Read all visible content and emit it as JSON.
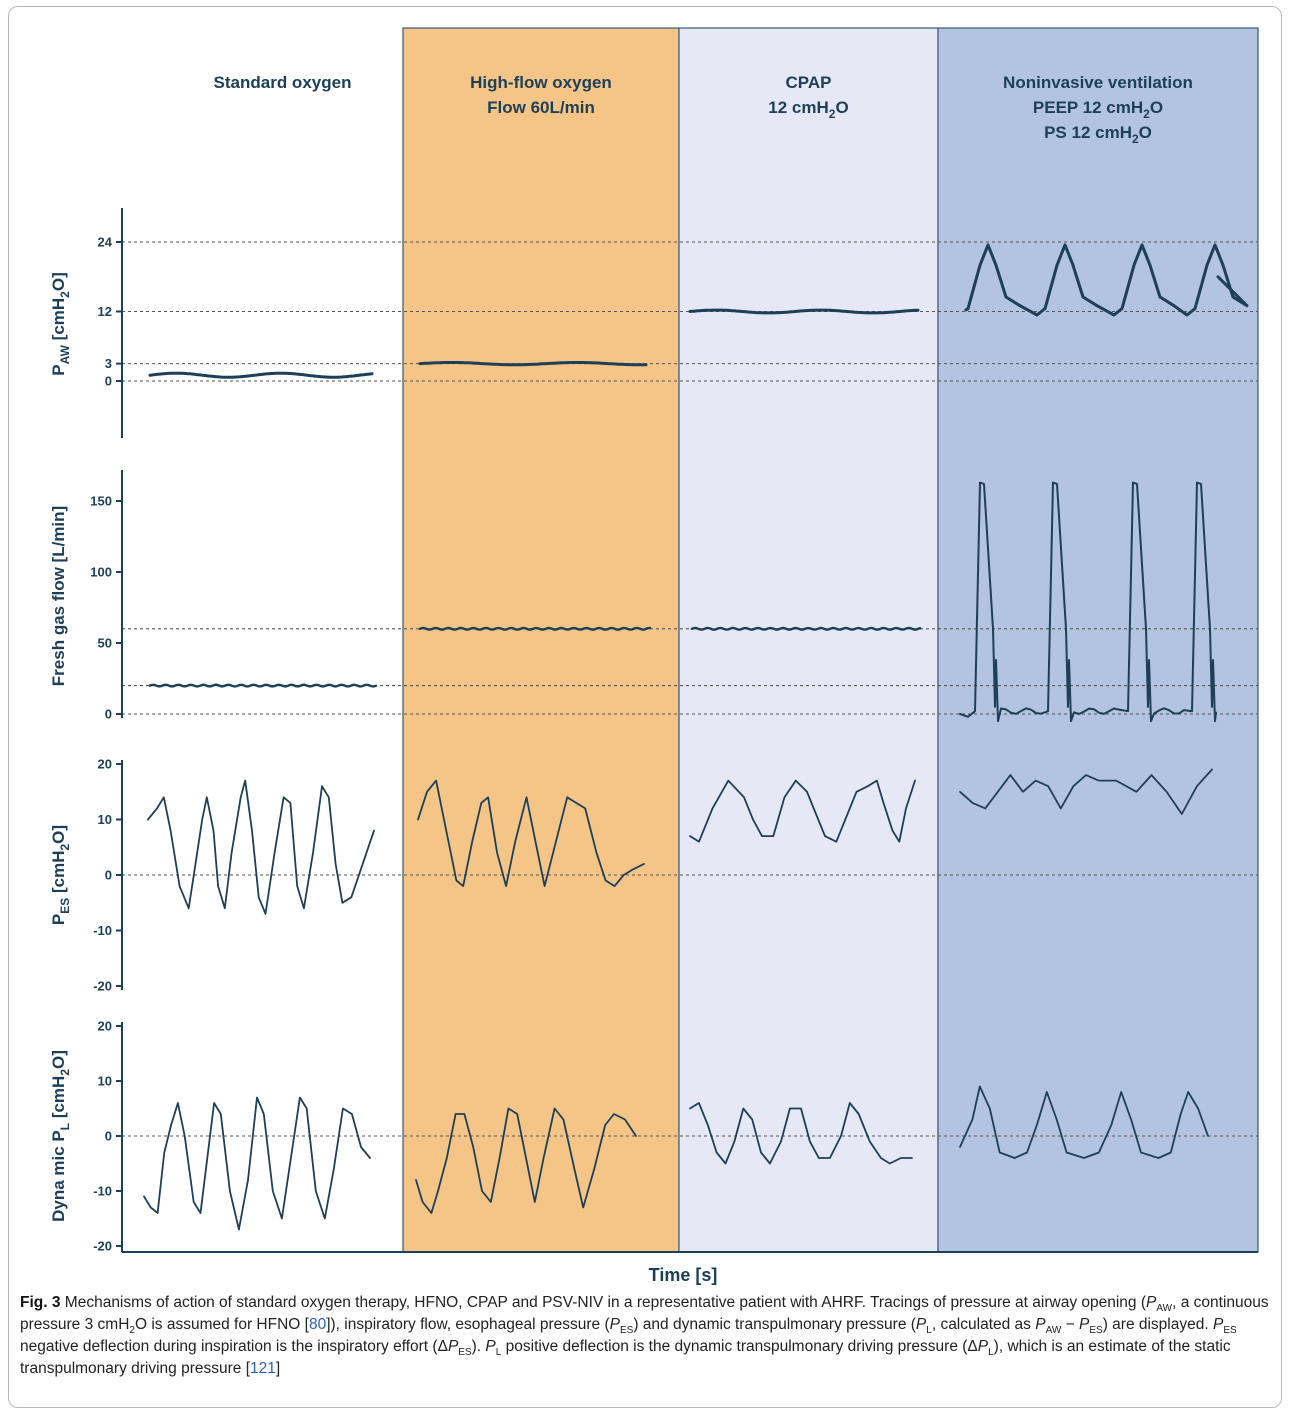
{
  "chart_data": {
    "type": "line",
    "x_axis_label": "Time [s]",
    "columns": [
      {
        "key": "standard",
        "title_lines": [
          "Standard oxygen"
        ],
        "bg": "#ffffff"
      },
      {
        "key": "hfno",
        "title_lines": [
          "High-flow oxygen",
          "Flow 60L/min"
        ],
        "bg": "#f5c587"
      },
      {
        "key": "cpap",
        "title_lines": [
          "CPAP",
          "12 cmH₂O"
        ],
        "bg": "#e6e9f5"
      },
      {
        "key": "niv",
        "title_lines": [
          "Noninvasive ventilation",
          "PEEP 12 cmH₂O",
          "PS 12 cmH₂O"
        ],
        "bg": "#b3c3e2"
      }
    ],
    "panels": [
      {
        "key": "paw",
        "ylabel": "P_AW [cmH₂O]",
        "ylabel_parts": [
          "P",
          "AW",
          " [cmH",
          "2",
          "O]"
        ],
        "ticks": [
          0,
          3,
          12,
          24
        ],
        "reference_lines": [
          0,
          3,
          12,
          24
        ],
        "series": {
          "standard": "flat ~1 cmH2O",
          "hfno": "flat ~3 cmH2O",
          "cpap": "flat ~12 cmH2O",
          "niv": "4 peaks ~23 cmH2O from baseline ~12"
        }
      },
      {
        "key": "flow",
        "ylabel": "Fresh gas flow [L/min]",
        "ticks": [
          0,
          50,
          100,
          150
        ],
        "reference_lines": [
          0,
          20,
          60
        ],
        "series": {
          "standard": "flat 20 L/min",
          "hfno": "flat 60 L/min",
          "cpap": "flat 60 L/min",
          "niv": "4 peaks ~165 L/min"
        }
      },
      {
        "key": "pes",
        "ylabel": "P_ES [cmH₂O]",
        "ylabel_parts": [
          "P",
          "ES",
          " [cmH",
          "2",
          "O]"
        ],
        "ticks": [
          20,
          10,
          0,
          -10,
          -20
        ],
        "reference_lines": [
          0
        ],
        "series": {
          "standard": "oscillation -6 to 17",
          "hfno": "oscillation -2 to 17",
          "cpap": "oscillation 6 to 17",
          "niv": "oscillation 11 to 19"
        }
      },
      {
        "key": "pl",
        "ylabel": "Dyna mic P_L [cmH₂O]",
        "ylabel_parts": [
          "Dyna mic P",
          "L",
          " [cmH",
          "2",
          "O]"
        ],
        "ticks": [
          20,
          10,
          0,
          -10,
          -20
        ],
        "reference_lines": [
          0
        ],
        "series": {
          "standard": "oscillation -17 to 8",
          "hfno": "oscillation -14 to 5",
          "cpap": "oscillation -5 to 6",
          "niv": "oscillation -4 to 9"
        }
      }
    ]
  },
  "caption": {
    "label": "Fig. 3",
    "text_parts": [
      "  Mechanisms of action of standard oxygen therapy, HFNO, CPAP and PSV-NIV in a representative patient with AHRF. Tracings of pressure at airway opening (",
      "P",
      "AW",
      ", a continuous pressure 3 cmH",
      "2",
      "O is assumed for HFNO [",
      "80",
      "]), inspiratory flow, esophageal pressure (",
      "P",
      "ES",
      ") and dynamic transpulmonary pressure (",
      "P",
      "L",
      ", calculated as ",
      "P",
      "AW",
      " − ",
      "P",
      "ES",
      ") are displayed. ",
      "P",
      "ES",
      " negative deflection during inspiration is the inspiratory effort (Δ",
      "P",
      "ES",
      "). ",
      "P",
      "L",
      " positive deflection is the dynamic transpulmonary driving pressure (Δ",
      "P",
      "L",
      "), which is an estimate of the static transpulmonary driving pressure [",
      "121",
      "]"
    ]
  },
  "colors": {
    "trace": "#1d3f58",
    "dashed": "#555555",
    "hfno_bg": "#f5c587",
    "cpap_bg": "#e6e9f5",
    "niv_bg": "#b3c3e2"
  }
}
